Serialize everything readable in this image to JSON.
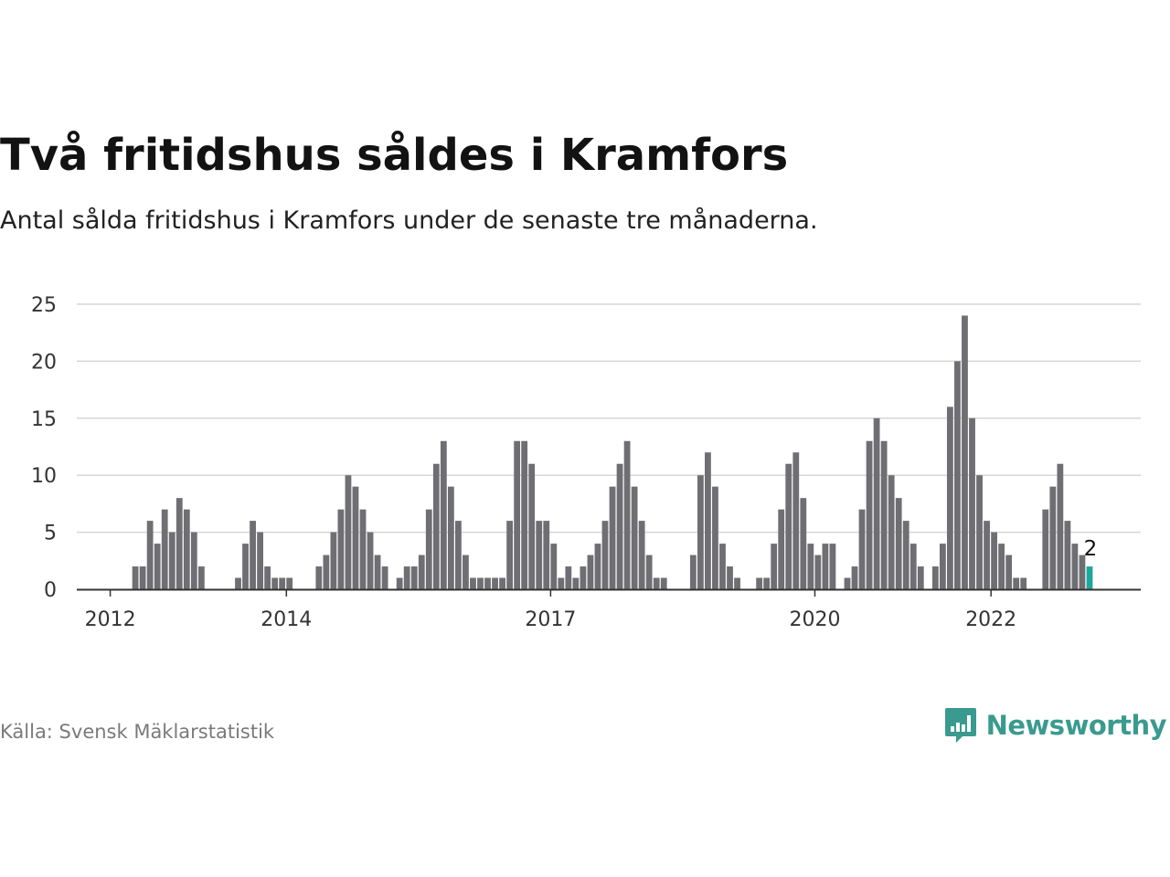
{
  "title": "Två fritidshus såldes i Kramfors",
  "subtitle": "Antal sålda fritidshus i Kramfors under de senaste tre månaderna.",
  "source": "Källa: Svensk Mäklarstatistik",
  "brand": {
    "name": "Newsworthy",
    "logo_icon": "newsworthy-logo-icon"
  },
  "colors": {
    "bar": "#6f6f73",
    "highlight": "#1fa79b",
    "grid": "#d6d6d6",
    "axis": "#333333",
    "brand": "#3a9a8f"
  },
  "chart_data": {
    "type": "bar",
    "x_unit": "month",
    "start_month": "2011-10",
    "values": [
      0,
      0,
      0,
      0,
      0,
      0,
      2,
      2,
      6,
      4,
      7,
      5,
      8,
      7,
      5,
      2,
      0,
      0,
      0,
      0,
      1,
      4,
      6,
      5,
      2,
      1,
      1,
      1,
      0,
      0,
      0,
      2,
      3,
      5,
      7,
      10,
      9,
      7,
      5,
      3,
      2,
      0,
      1,
      2,
      2,
      3,
      7,
      11,
      13,
      9,
      6,
      3,
      1,
      1,
      1,
      1,
      1,
      6,
      13,
      13,
      11,
      6,
      6,
      4,
      1,
      2,
      1,
      2,
      3,
      4,
      6,
      9,
      11,
      13,
      9,
      6,
      3,
      1,
      1,
      0,
      0,
      0,
      3,
      10,
      12,
      9,
      4,
      2,
      1,
      0,
      0,
      1,
      1,
      4,
      7,
      11,
      12,
      8,
      4,
      3,
      4,
      4,
      0,
      1,
      2,
      7,
      13,
      15,
      13,
      10,
      8,
      6,
      4,
      2,
      0,
      2,
      4,
      16,
      20,
      24,
      15,
      10,
      6,
      5,
      4,
      3,
      1,
      1,
      0,
      0,
      7,
      9,
      11,
      6,
      4,
      3,
      2
    ],
    "highlight_last": true,
    "annotation": "2",
    "ylim": [
      0,
      25
    ],
    "yticks": [
      0,
      5,
      10,
      15,
      20,
      25
    ],
    "xticks": [
      {
        "label": "2012",
        "month": "2012-01"
      },
      {
        "label": "2014",
        "month": "2014-01"
      },
      {
        "label": "2017",
        "month": "2017-01"
      },
      {
        "label": "2020",
        "month": "2020-01"
      },
      {
        "label": "2022",
        "month": "2022-01"
      }
    ],
    "grid": true,
    "xlabel": "",
    "ylabel": ""
  }
}
